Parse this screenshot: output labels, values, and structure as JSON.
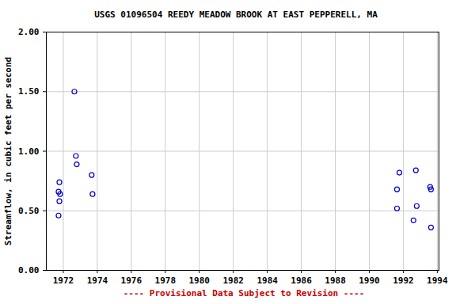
{
  "chart_data": {
    "type": "scatter",
    "title": "USGS 01096504 REEDY MEADOW BROOK AT EAST PEPPERELL, MA",
    "caption": "---- Provisional Data Subject to Revision ----",
    "y_label": "Streamflow, in cubic feet per second",
    "x": [
      1971.72,
      1971.77,
      1971.81,
      1971.77,
      1971.72,
      1972.65,
      1972.74,
      1972.79,
      1973.67,
      1973.72,
      1991.63,
      1991.77,
      1991.63,
      1992.74,
      1992.79,
      1992.6,
      1993.58,
      1993.63,
      1993.63
    ],
    "values": [
      0.66,
      0.74,
      0.64,
      0.58,
      0.46,
      1.5,
      0.96,
      0.89,
      0.8,
      0.64,
      0.68,
      0.82,
      0.52,
      0.84,
      0.54,
      0.42,
      0.7,
      0.68,
      0.36
    ],
    "color": "#0000cc",
    "marker": "open_circle",
    "xlim": [
      1971,
      1994.1
    ],
    "xticks": [
      1972,
      1974,
      1976,
      1978,
      1980,
      1982,
      1984,
      1986,
      1988,
      1990,
      1992,
      1994
    ],
    "ylim": [
      0,
      2
    ],
    "yticks": [
      {
        "value": 0,
        "label": "0.00"
      },
      {
        "value": 0.5,
        "label": "0.50"
      },
      {
        "value": 1,
        "label": "1.00"
      },
      {
        "value": 1.5,
        "label": "1.50"
      },
      {
        "value": 2,
        "label": "2.00"
      }
    ],
    "grid": true
  }
}
